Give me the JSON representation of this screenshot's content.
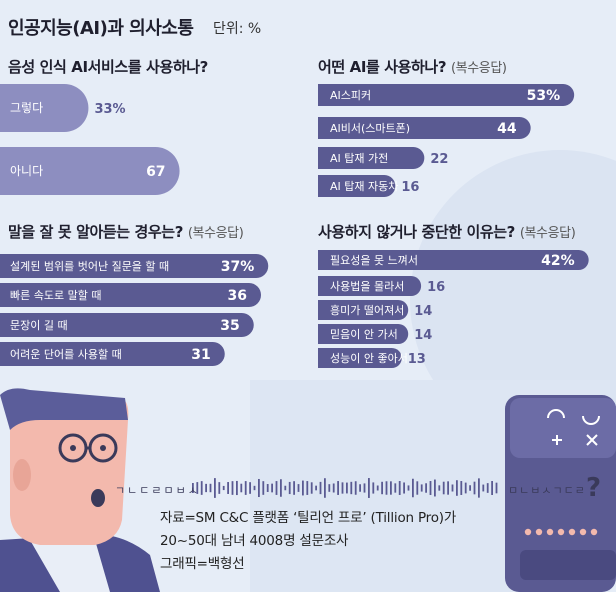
{
  "header": {
    "title": "인공지능(AI)과 의사소통",
    "unit": "단위: %"
  },
  "colors": {
    "bar_dark": "#5a5a92",
    "bar_light": "#8d8ec0",
    "background": "#e6edf7",
    "text_on_bar": "#ffffff"
  },
  "chart_data": [
    {
      "type": "bar",
      "title": "음성 인식 AI서비스를 사용하나?",
      "note": "",
      "categories": [
        "그렇다",
        "아니다"
      ],
      "values": [
        33,
        67
      ],
      "value_labels": [
        "33%",
        "67"
      ],
      "xlim": [
        0,
        100
      ]
    },
    {
      "type": "bar",
      "title": "어떤 AI를 사용하나?",
      "note": "(복수응답)",
      "categories": [
        "AI스피커",
        "AI비서(스마트폰)",
        "AI 탑재 가전",
        "AI 탑재 자동차"
      ],
      "values": [
        53,
        44,
        22,
        16
      ],
      "value_labels": [
        "53%",
        "44",
        "22",
        "16"
      ],
      "xlim": [
        0,
        60
      ]
    },
    {
      "type": "bar",
      "title": "말을 잘 못 알아듣는 경우는?",
      "note": "(복수응답)",
      "categories": [
        "설계된 범위를 벗어난 질문을 할 때",
        "빠른 속도로 말할 때",
        "문장이 길 때",
        "어려운 단어를 사용할 때"
      ],
      "values": [
        37,
        36,
        35,
        31
      ],
      "value_labels": [
        "37%",
        "36",
        "35",
        "31"
      ],
      "xlim": [
        0,
        40
      ]
    },
    {
      "type": "bar",
      "title": "사용하지 않거나 중단한 이유는?",
      "note": "(복수응답)",
      "categories": [
        "필요성을 못 느껴서",
        "사용법을 몰라서",
        "흥미가 떨어져서",
        "믿음이 안 가서",
        "성능이 안 좋아서"
      ],
      "values": [
        42,
        16,
        14,
        14,
        13
      ],
      "value_labels": [
        "42%",
        "16",
        "14",
        "14",
        "13"
      ],
      "xlim": [
        0,
        45
      ]
    }
  ],
  "illustration": {
    "left_speech": "ㄱㄴㄷㄹㅁㅂㅅ",
    "right_speech": "ㅁㄴㅂㅅㄱㄷㄹ",
    "right_mark": "?"
  },
  "credit": {
    "line1": "자료=SM C&C 플랫폼 ‘틸리언 프로’ (Tillion Pro)가",
    "line2": "20~50대 남녀 4008명 설문조사",
    "line3": "그래픽=백형선"
  }
}
